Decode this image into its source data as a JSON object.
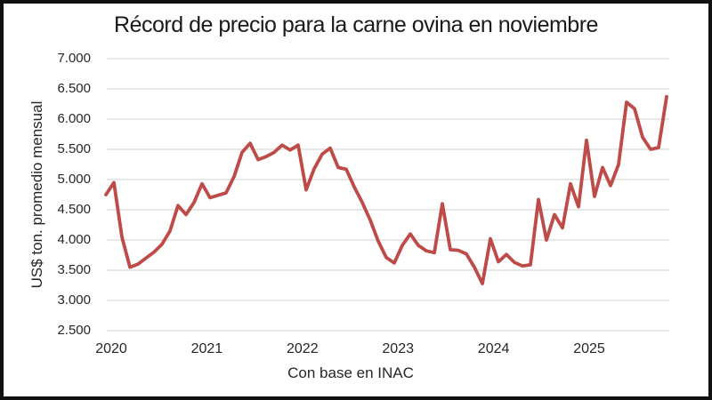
{
  "chart": {
    "title": "Récord de precio para la carne ovina en noviembre",
    "xlabel": "Con base en INAC",
    "ylabel": "US$ ton. promedio mensual"
  },
  "chart_data": {
    "type": "line",
    "title": "Récord de precio para la carne ovina en noviembre",
    "xlabel": "Con base en INAC",
    "ylabel": "US$ ton. promedio mensual",
    "legend": "none",
    "grid": "horizontal-only",
    "gridline_color": "#d9d9d9",
    "line_color": "#be4b48",
    "ylim": [
      2500,
      7000
    ],
    "y_tick_step": 500,
    "y_tick_labels": [
      "7.000",
      "6.500",
      "6.000",
      "5.500",
      "5.000",
      "4.500",
      "4.000",
      "3.500",
      "3.000",
      "2.500"
    ],
    "x_tick_labels": [
      "2020",
      "2021",
      "2022",
      "2023",
      "2024",
      "2025"
    ],
    "x": [
      "2020-01",
      "2020-02",
      "2020-03",
      "2020-04",
      "2020-05",
      "2020-06",
      "2020-07",
      "2020-08",
      "2020-09",
      "2020-10",
      "2020-11",
      "2020-12",
      "2021-01",
      "2021-02",
      "2021-03",
      "2021-04",
      "2021-05",
      "2021-06",
      "2021-07",
      "2021-08",
      "2021-09",
      "2021-10",
      "2021-11",
      "2021-12",
      "2022-01",
      "2022-02",
      "2022-03",
      "2022-04",
      "2022-05",
      "2022-06",
      "2022-07",
      "2022-08",
      "2022-09",
      "2022-10",
      "2022-11",
      "2022-12",
      "2023-01",
      "2023-02",
      "2023-03",
      "2023-04",
      "2023-05",
      "2023-06",
      "2023-07",
      "2023-08",
      "2023-09",
      "2023-10",
      "2023-11",
      "2023-12",
      "2024-01",
      "2024-02",
      "2024-03",
      "2024-04",
      "2024-05",
      "2024-06",
      "2024-07",
      "2024-08",
      "2024-09",
      "2024-10",
      "2024-11",
      "2024-12",
      "2025-01",
      "2025-02",
      "2025-03",
      "2025-04",
      "2025-05",
      "2025-06",
      "2025-07",
      "2025-08",
      "2025-09",
      "2025-10",
      "2025-11"
    ],
    "series": [
      {
        "name": "US$ ton. promedio mensual",
        "values": [
          4750,
          4950,
          4050,
          3550,
          3600,
          3700,
          3800,
          3930,
          4150,
          4570,
          4420,
          4620,
          4930,
          4700,
          4740,
          4780,
          5050,
          5450,
          5600,
          5330,
          5380,
          5450,
          5570,
          5490,
          5570,
          4830,
          5180,
          5420,
          5520,
          5200,
          5170,
          4880,
          4620,
          4330,
          3980,
          3710,
          3620,
          3910,
          4100,
          3910,
          3820,
          3790,
          4600,
          3840,
          3830,
          3770,
          3550,
          3280,
          4020,
          3640,
          3760,
          3630,
          3570,
          3590,
          4670,
          4000,
          4420,
          4200,
          4930,
          4550,
          5650,
          4720,
          5200,
          4900,
          5250,
          6280,
          6170,
          5700,
          5500,
          5530,
          6370
        ]
      }
    ]
  }
}
